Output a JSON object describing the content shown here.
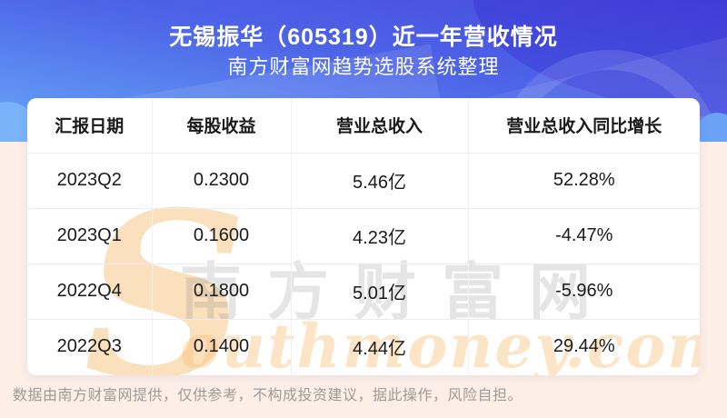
{
  "header": {
    "title": "无锡振华（605319）近一年营收情况",
    "subtitle": "南方财富网趋势选股系统整理"
  },
  "chart_data": {
    "type": "table",
    "title": "无锡振华（605319）近一年营收情况",
    "subtitle": "南方财富网趋势选股系统整理",
    "columns": [
      "汇报日期",
      "每股收益",
      "营业总收入",
      "营业总收入同比增长"
    ],
    "rows": [
      [
        "2023Q2",
        "0.2300",
        "5.46亿",
        "52.28%"
      ],
      [
        "2023Q1",
        "0.1600",
        "4.23亿",
        "-4.47%"
      ],
      [
        "2022Q4",
        "0.1800",
        "5.01亿",
        "-5.96%"
      ],
      [
        "2022Q3",
        "0.1400",
        "4.44亿",
        "29.44%"
      ]
    ]
  },
  "watermark": {
    "cn": "南方财富网",
    "s": "S",
    "en": "outhmoney.com"
  },
  "footer": {
    "disclaimer": "数据由南方财富网提供，仅供参考，不构成投资建议，据此操作，风险自担。"
  },
  "colors": {
    "banner_gradient_top": "#4847da",
    "banner_gradient_mid": "#4d64e8",
    "banner_gradient_bottom": "#68a9f7",
    "page_background": "#fdeee6",
    "card_background": "#ffffff",
    "watermark_orange": "#f6b25c",
    "watermark_gray": "#bdbdbd",
    "table_text": "#1a1a1a",
    "divider": "#e8ecf4",
    "footer_text": "#9b9b9b"
  }
}
